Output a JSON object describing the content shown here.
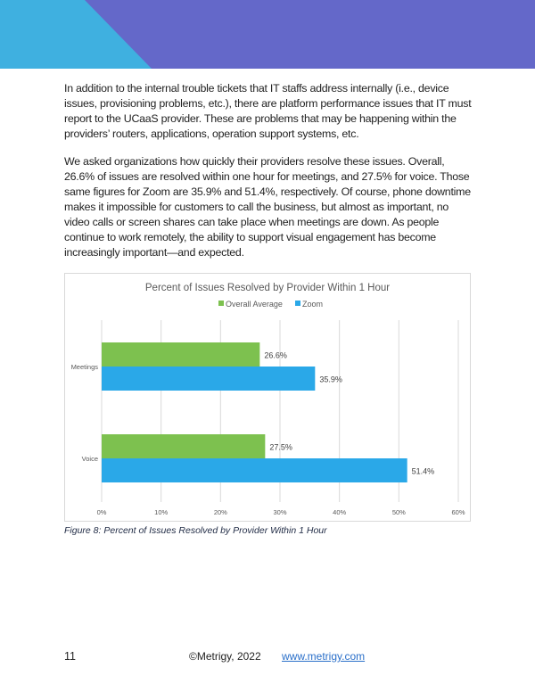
{
  "colors": {
    "header_blue": "#3fb0e0",
    "header_purple": "#6468c9",
    "overall_average": "#7dc14f",
    "zoom": "#2aa8e8",
    "link": "#2a6fc9"
  },
  "body": {
    "paragraph1": "In addition to the internal trouble tickets that IT staffs address internally (i.e., device issues, provisioning problems, etc.), there are platform performance issues that IT must report to the UCaaS provider. These are problems that may be happening within the providers’ routers, applications, operation support systems, etc.",
    "paragraph2": "We asked organizations how quickly their providers resolve these issues. Overall, 26.6% of issues are resolved within one hour for meetings, and 27.5% for voice. Those same figures for Zoom are 35.9% and 51.4%, respectively. Of course, phone downtime makes it impossible for customers to call the business, but almost as important, no video calls or screen shares can take place when meetings are down. As people continue to work remotely, the ability to support visual engagement has become increasingly important—and expected."
  },
  "chart_data": {
    "type": "bar",
    "orientation": "horizontal",
    "title": "Percent of Issues Resolved by Provider Within 1 Hour",
    "categories": [
      "Meetings",
      "Voice"
    ],
    "series": [
      {
        "name": "Overall Average",
        "values": [
          26.6,
          27.5
        ],
        "labels": [
          "26.6%",
          "27.5%"
        ]
      },
      {
        "name": "Zoom",
        "values": [
          35.9,
          51.4
        ],
        "labels": [
          "35.9%",
          "51.4%"
        ]
      }
    ],
    "xlim": [
      0,
      60
    ],
    "xticks": [
      "0%",
      "10%",
      "20%",
      "30%",
      "40%",
      "50%",
      "60%"
    ],
    "grid": true,
    "legend": "top"
  },
  "caption": "Figure 8: Percent of Issues Resolved by Provider Within 1 Hour",
  "footer": {
    "page_number": "11",
    "copyright": "©Metrigy, 2022",
    "link": "www.metrigy.com"
  }
}
